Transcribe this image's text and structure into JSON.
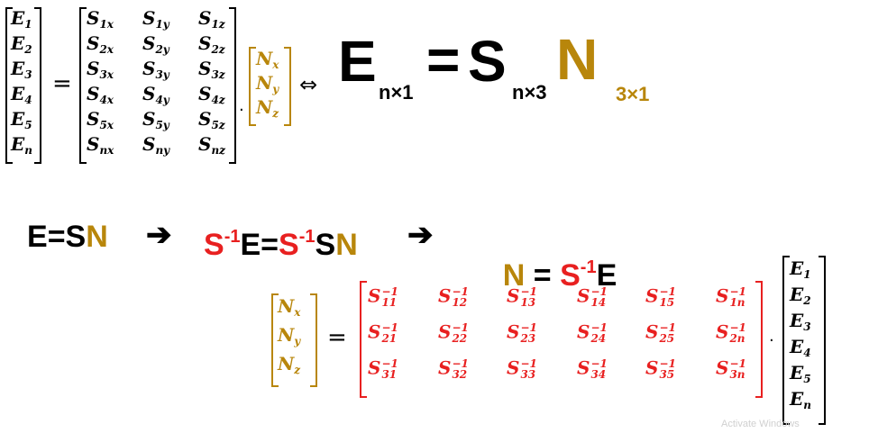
{
  "colors": {
    "gold": "#B8860B",
    "red": "#E82020",
    "black": "#000000"
  },
  "eq1": {
    "E": [
      {
        "base": "E",
        "sub": "1"
      },
      {
        "base": "E",
        "sub": "2"
      },
      {
        "base": "E",
        "sub": "3"
      },
      {
        "base": "E",
        "sub": "4"
      },
      {
        "base": "E",
        "sub": "5"
      },
      {
        "base": "E",
        "sub": "n"
      }
    ],
    "S": [
      [
        {
          "base": "S",
          "sub": "1x"
        },
        {
          "base": "S",
          "sub": "1y"
        },
        {
          "base": "S",
          "sub": "1z"
        }
      ],
      [
        {
          "base": "S",
          "sub": "2x"
        },
        {
          "base": "S",
          "sub": "2y"
        },
        {
          "base": "S",
          "sub": "2z"
        }
      ],
      [
        {
          "base": "S",
          "sub": "3x"
        },
        {
          "base": "S",
          "sub": "3y"
        },
        {
          "base": "S",
          "sub": "3z"
        }
      ],
      [
        {
          "base": "S",
          "sub": "4x"
        },
        {
          "base": "S",
          "sub": "4y"
        },
        {
          "base": "S",
          "sub": "4z"
        }
      ],
      [
        {
          "base": "S",
          "sub": "5x"
        },
        {
          "base": "S",
          "sub": "5y"
        },
        {
          "base": "S",
          "sub": "5z"
        }
      ],
      [
        {
          "base": "S",
          "sub": "nx"
        },
        {
          "base": "S",
          "sub": "ny"
        },
        {
          "base": "S",
          "sub": "nz"
        }
      ]
    ],
    "N": [
      {
        "base": "N",
        "sub": "x"
      },
      {
        "base": "N",
        "sub": "y"
      },
      {
        "base": "N",
        "sub": "z"
      }
    ],
    "equals": "=",
    "dot": "·",
    "iff": "⇔"
  },
  "compact": {
    "E": "E",
    "E_dim": "n×1",
    "equals": "=",
    "S": "S",
    "S_dim": "n×3",
    "N": "N",
    "N_dim": "3×1"
  },
  "derivation": {
    "step1": {
      "E": "E",
      "eq": "=",
      "S": "S",
      "N": "N"
    },
    "arrow": "➔",
    "step2": {
      "Sinv": "S",
      "inv": "-1",
      "E": "E",
      "eq": "=",
      "Sinv2": "S",
      "inv2": "-1",
      "S": "S",
      "N": "N"
    },
    "step3": {
      "N": "N",
      "eq": " = ",
      "Sinv": "S",
      "inv": "-1",
      "E": "E"
    }
  },
  "eq2": {
    "N": [
      {
        "base": "N",
        "sub": "x"
      },
      {
        "base": "N",
        "sub": "y"
      },
      {
        "base": "N",
        "sub": "z"
      }
    ],
    "Sinv": [
      [
        {
          "base": "S",
          "sup": "−1",
          "sub": "11"
        },
        {
          "base": "S",
          "sup": "−1",
          "sub": "12"
        },
        {
          "base": "S",
          "sup": "−1",
          "sub": "13"
        },
        {
          "base": "S",
          "sup": "−1",
          "sub": "14"
        },
        {
          "base": "S",
          "sup": "−1",
          "sub": "15"
        },
        {
          "base": "S",
          "sup": "−1",
          "sub": "1n"
        }
      ],
      [
        {
          "base": "S",
          "sup": "−1",
          "sub": "21"
        },
        {
          "base": "S",
          "sup": "−1",
          "sub": "22"
        },
        {
          "base": "S",
          "sup": "−1",
          "sub": "23"
        },
        {
          "base": "S",
          "sup": "−1",
          "sub": "24"
        },
        {
          "base": "S",
          "sup": "−1",
          "sub": "25"
        },
        {
          "base": "S",
          "sup": "−1",
          "sub": "2n"
        }
      ],
      [
        {
          "base": "S",
          "sup": "−1",
          "sub": "31"
        },
        {
          "base": "S",
          "sup": "−1",
          "sub": "32"
        },
        {
          "base": "S",
          "sup": "−1",
          "sub": "33"
        },
        {
          "base": "S",
          "sup": "−1",
          "sub": "34"
        },
        {
          "base": "S",
          "sup": "−1",
          "sub": "35"
        },
        {
          "base": "S",
          "sup": "−1",
          "sub": "3n"
        }
      ]
    ],
    "E": [
      {
        "base": "E",
        "sub": "1"
      },
      {
        "base": "E",
        "sub": "2"
      },
      {
        "base": "E",
        "sub": "3"
      },
      {
        "base": "E",
        "sub": "4"
      },
      {
        "base": "E",
        "sub": "5"
      },
      {
        "base": "E",
        "sub": "n"
      }
    ],
    "equals": "=",
    "dot": "·"
  },
  "watermark": "Activate Windows"
}
